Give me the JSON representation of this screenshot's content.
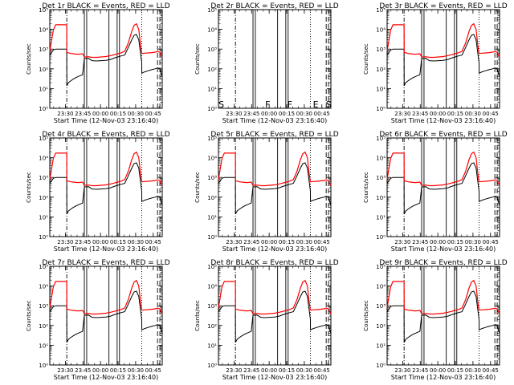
{
  "chart_data": {
    "type": "line",
    "shared": {
      "xlabel": "Start Time (12-Nov-03 23:16:40)",
      "ylabel": "Counts/sec",
      "y_scale": "log",
      "ylim": [
        1,
        100000
      ],
      "x_minutes_range": [
        0,
        96
      ],
      "x_ticks": [
        {
          "label": "23:30",
          "t": 13.3
        },
        {
          "label": "23:45",
          "t": 28.3
        },
        {
          "label": "00:00",
          "t": 43.3
        },
        {
          "label": "00:15",
          "t": 58.3
        },
        {
          "label": "00:30",
          "t": 73.3
        },
        {
          "label": "00:45",
          "t": 88.3
        }
      ],
      "y_ticks": [
        {
          "label": "10⁰",
          "v": 1
        },
        {
          "label": "10¹",
          "v": 10
        },
        {
          "label": "10²",
          "v": 100
        },
        {
          "label": "10³",
          "v": 1000
        },
        {
          "label": "10⁴",
          "v": 10000
        },
        {
          "label": "10⁵",
          "v": 100000
        }
      ],
      "colors": {
        "events": "#000000",
        "lld": "#ff0000"
      },
      "vlines": [
        {
          "t": 14.5,
          "style": "dashdot"
        },
        {
          "t": 29.5,
          "style": "solid"
        },
        {
          "t": 31.5,
          "style": "solid"
        },
        {
          "t": 50.5,
          "style": "solid"
        },
        {
          "t": 57.5,
          "style": "solid"
        },
        {
          "t": 59.5,
          "style": "solid"
        },
        {
          "t": 78.5,
          "style": "dotted"
        },
        {
          "t": 92.0,
          "style": "dashed"
        },
        {
          "t": 94.0,
          "style": "dashed"
        }
      ],
      "events_t": [
        0,
        3,
        5,
        7,
        10,
        13,
        14.5,
        14.6,
        16,
        18,
        20,
        22,
        24,
        26,
        28,
        29.5,
        31.5,
        33,
        36,
        40,
        44,
        48,
        52,
        55,
        58,
        61,
        64,
        67,
        70,
        72,
        74,
        76,
        77.5,
        78.5,
        78.6,
        81,
        84,
        87,
        90,
        92,
        94,
        95,
        96
      ],
      "events_v": [
        500,
        900,
        1000,
        1000,
        1000,
        1000,
        1000,
        14,
        20,
        25,
        30,
        35,
        40,
        45,
        50,
        330,
        330,
        340,
        260,
        250,
        260,
        270,
        300,
        350,
        400,
        450,
        500,
        1200,
        3000,
        5000,
        5500,
        3000,
        600,
        200,
        60,
        70,
        80,
        90,
        100,
        110,
        100,
        60,
        40
      ],
      "lld_t": [
        0,
        3,
        5,
        7,
        10,
        13,
        14.5,
        14.6,
        16,
        18,
        20,
        22,
        24,
        26,
        28,
        29.5,
        31.5,
        33,
        36,
        40,
        44,
        48,
        52,
        55,
        58,
        61,
        64,
        67,
        70,
        72,
        74,
        76,
        77.5,
        78.5,
        78.6,
        81,
        84,
        87,
        90,
        92,
        94,
        95,
        96
      ],
      "lld_v": [
        800,
        9000,
        17000,
        17000,
        17000,
        17000,
        17000,
        650,
        650,
        600,
        580,
        560,
        550,
        560,
        580,
        400,
        400,
        410,
        380,
        380,
        400,
        420,
        470,
        520,
        580,
        650,
        780,
        2000,
        8000,
        16000,
        19000,
        10000,
        1500,
        600,
        600,
        620,
        640,
        660,
        700,
        750,
        700,
        500,
        400
      ]
    },
    "panels": [
      {
        "title": "Det 1r BLACK = Events, RED = LLD",
        "has_data": true
      },
      {
        "title": "Det 2r BLACK = Events, RED = LLD",
        "has_data": false,
        "markers": [
          {
            "t": 2.5,
            "text": "S"
          },
          {
            "t": 42,
            "text": "F"
          },
          {
            "t": 61,
            "text": "F"
          },
          {
            "t": 83,
            "text": "E"
          },
          {
            "t": 94,
            "text": "S"
          }
        ]
      },
      {
        "title": "Det 3r BLACK = Events, RED = LLD",
        "has_data": true
      },
      {
        "title": "Det 4r BLACK = Events, RED = LLD",
        "has_data": true
      },
      {
        "title": "Det 5r BLACK = Events, RED = LLD",
        "has_data": true
      },
      {
        "title": "Det 6r BLACK = Events, RED = LLD",
        "has_data": true
      },
      {
        "title": "Det 7r BLACK = Events, RED = LLD",
        "has_data": true
      },
      {
        "title": "Det 8r BLACK = Events, RED = LLD",
        "has_data": true
      },
      {
        "title": "Det 9r BLACK = Events, RED = LLD",
        "has_data": true
      }
    ]
  }
}
